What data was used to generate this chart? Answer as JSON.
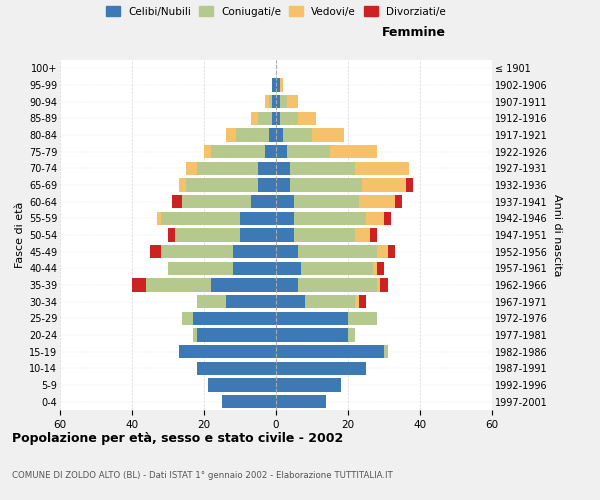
{
  "age_groups": [
    "100+",
    "95-99",
    "90-94",
    "85-89",
    "80-84",
    "75-79",
    "70-74",
    "65-69",
    "60-64",
    "55-59",
    "50-54",
    "45-49",
    "40-44",
    "35-39",
    "30-34",
    "25-29",
    "20-24",
    "15-19",
    "10-14",
    "5-9",
    "0-4"
  ],
  "birth_years": [
    "≤ 1901",
    "1902-1906",
    "1907-1911",
    "1912-1916",
    "1917-1921",
    "1922-1926",
    "1927-1931",
    "1932-1936",
    "1937-1941",
    "1942-1946",
    "1947-1951",
    "1952-1956",
    "1957-1961",
    "1962-1966",
    "1967-1971",
    "1972-1976",
    "1977-1981",
    "1982-1986",
    "1987-1991",
    "1992-1996",
    "1997-2001"
  ],
  "males": {
    "celibe": [
      0,
      1,
      1,
      1,
      2,
      3,
      5,
      5,
      7,
      10,
      10,
      12,
      12,
      18,
      14,
      23,
      22,
      27,
      22,
      19,
      15
    ],
    "coniugato": [
      0,
      0,
      1,
      4,
      9,
      15,
      17,
      20,
      19,
      22,
      18,
      20,
      18,
      18,
      8,
      3,
      1,
      0,
      0,
      0,
      0
    ],
    "vedovo": [
      0,
      0,
      1,
      2,
      3,
      2,
      3,
      2,
      0,
      1,
      0,
      0,
      0,
      0,
      0,
      0,
      0,
      0,
      0,
      0,
      0
    ],
    "divorziato": [
      0,
      0,
      0,
      0,
      0,
      0,
      0,
      0,
      3,
      0,
      2,
      3,
      0,
      4,
      0,
      0,
      0,
      0,
      0,
      0,
      0
    ]
  },
  "females": {
    "nubile": [
      0,
      1,
      1,
      1,
      2,
      3,
      4,
      4,
      5,
      5,
      5,
      6,
      7,
      6,
      8,
      20,
      20,
      30,
      25,
      18,
      14
    ],
    "coniugata": [
      0,
      0,
      2,
      5,
      8,
      12,
      18,
      20,
      18,
      20,
      17,
      22,
      20,
      22,
      14,
      8,
      2,
      1,
      0,
      0,
      0
    ],
    "vedova": [
      0,
      1,
      3,
      5,
      9,
      13,
      15,
      12,
      10,
      5,
      4,
      3,
      1,
      1,
      1,
      0,
      0,
      0,
      0,
      0,
      0
    ],
    "divorziata": [
      0,
      0,
      0,
      0,
      0,
      0,
      0,
      2,
      2,
      2,
      2,
      2,
      2,
      2,
      2,
      0,
      0,
      0,
      0,
      0,
      0
    ]
  },
  "colors": {
    "celibe": "#3d7ab5",
    "coniugato": "#b5c98e",
    "vedovo": "#f5c26b",
    "divorziato": "#cc2222"
  },
  "xlim": 60,
  "title": "Popolazione per età, sesso e stato civile - 2002",
  "subtitle": "COMUNE DI ZOLDO ALTO (BL) - Dati ISTAT 1° gennaio 2002 - Elaborazione TUTTITALIA.IT",
  "ylabel": "Fasce di età",
  "ylabel_right": "Anni di nascita",
  "xlabel_right": "Femmine",
  "legend_labels": [
    "Celibi/Nubili",
    "Coniugati/e",
    "Vedovi/e",
    "Divorziati/e"
  ],
  "bg_color": "#f0f0f0",
  "plot_bg": "#ffffff"
}
